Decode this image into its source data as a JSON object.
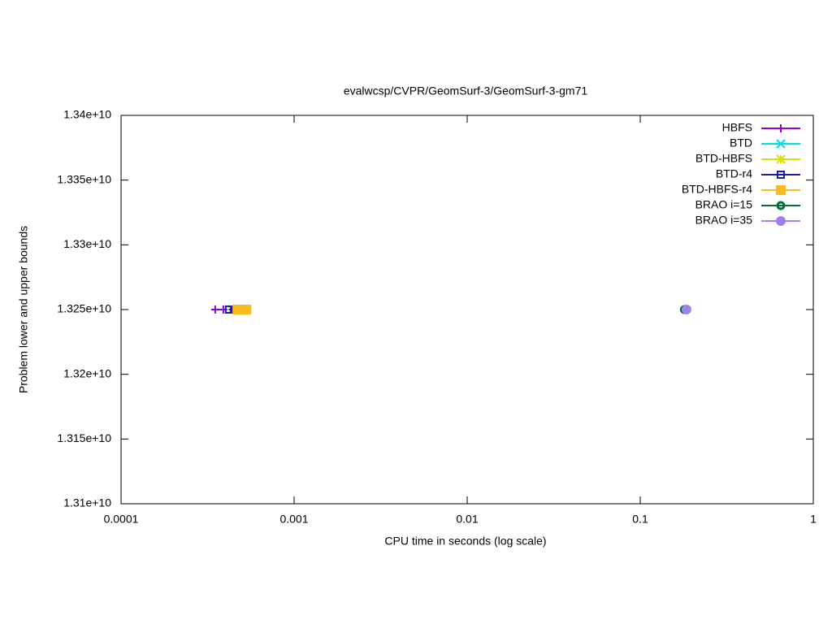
{
  "chart_data": {
    "type": "line",
    "title": "evalwcsp/CVPR/GeomSurf-3/GeomSurf-3-gm71",
    "xlabel": "CPU time in seconds (log scale)",
    "ylabel": "Problem lower and upper bounds",
    "xscale": "log",
    "xlim": [
      0.0001,
      1
    ],
    "xticks": [
      0.0001,
      0.001,
      0.01,
      0.1,
      1
    ],
    "ylim": [
      13100000000,
      13400000000
    ],
    "yticks": [
      {
        "value": 13100000000,
        "label": "1.31e+10"
      },
      {
        "value": 13150000000,
        "label": "1.315e+10"
      },
      {
        "value": 13200000000,
        "label": "1.32e+10"
      },
      {
        "value": 13250000000,
        "label": "1.325e+10"
      },
      {
        "value": 13300000000,
        "label": "1.33e+10"
      },
      {
        "value": 13350000000,
        "label": "1.335e+10"
      },
      {
        "value": 13400000000,
        "label": "1.34e+10"
      }
    ],
    "legend": "top right",
    "series": [
      {
        "name": "HBFS",
        "color": "#9400d3",
        "marker": "plus",
        "x": [
          0.00035,
          0.00039
        ],
        "values": [
          13250000000,
          13250000000
        ]
      },
      {
        "name": "BTD",
        "color": "#00e0e0",
        "marker": "cross",
        "x": [
          0.00044
        ],
        "values": [
          13250000000
        ]
      },
      {
        "name": "BTD-HBFS",
        "color": "#e0e000",
        "marker": "star",
        "x": [
          0.00044
        ],
        "values": [
          13250000000
        ]
      },
      {
        "name": "BTD-r4",
        "color": "#1c1cb0",
        "marker": "open-square",
        "x": [
          0.00042,
          0.00045
        ],
        "values": [
          13250000000,
          13250000000
        ]
      },
      {
        "name": "BTD-HBFS-r4",
        "color": "#f8bc20",
        "marker": "filled-square",
        "x": [
          0.00047,
          0.00053
        ],
        "values": [
          13250000000,
          13250000000
        ]
      },
      {
        "name": "BRAO i=15",
        "color": "#007032",
        "marker": "open-circle",
        "x": [
          0.18
        ],
        "values": [
          13250000000
        ]
      },
      {
        "name": "BRAO i=35",
        "color": "#a080f0",
        "marker": "filled-circle",
        "x": [
          0.185
        ],
        "values": [
          13250000000
        ]
      }
    ]
  }
}
